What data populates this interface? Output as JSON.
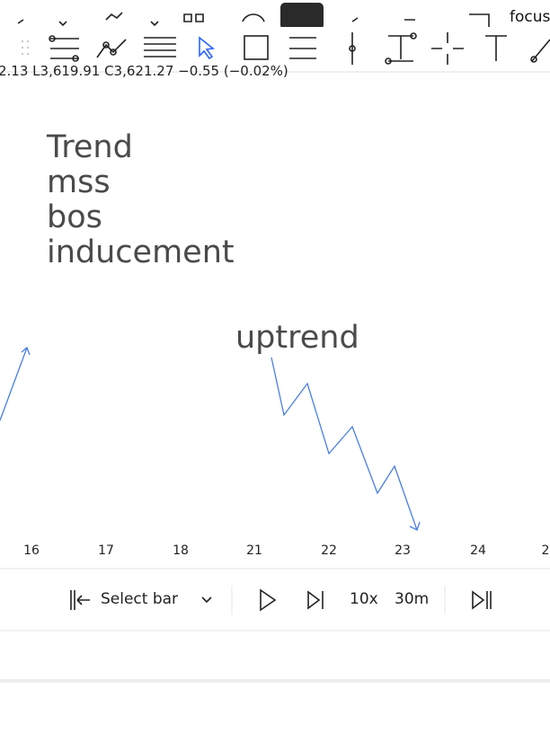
{
  "toolbar": {
    "focus_label": "focus"
  },
  "ohlc_line": "2.13 L3,619.91 C3,621.27 −0.55 (−0.02%)",
  "annotations": {
    "lines": [
      "Trend",
      "mss",
      "bos",
      "inducement"
    ],
    "uptrend": "uptrend"
  },
  "time_axis": {
    "labels": [
      "16",
      "17",
      "18",
      "21",
      "22",
      "23",
      "24",
      "2"
    ]
  },
  "replay_bar": {
    "select_bar": "Select bar",
    "speed": "10x",
    "interval": "30m"
  }
}
